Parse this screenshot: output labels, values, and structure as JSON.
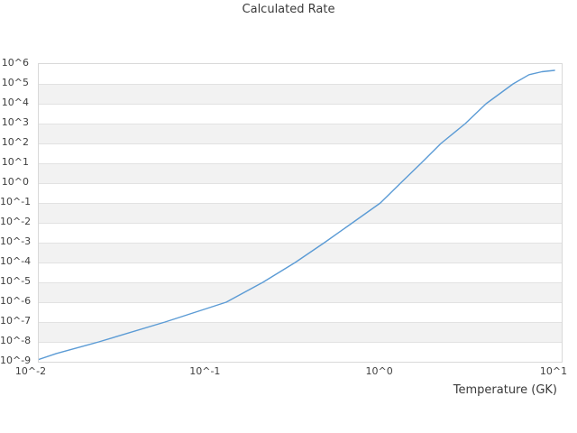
{
  "chart_data": {
    "type": "line",
    "title": "Calculated Rate",
    "xlabel": "Temperature (GK)",
    "ylabel": "",
    "x_scale": "log",
    "y_scale": "log",
    "xlim": [
      0.01,
      10
    ],
    "ylim": [
      1e-09,
      1000000.0
    ],
    "x_ticks": [
      {
        "label": "10^-2",
        "value": 0.01
      },
      {
        "label": "10^-1",
        "value": 0.1
      },
      {
        "label": "10^0",
        "value": 1
      },
      {
        "label": "10^1",
        "value": 10
      }
    ],
    "y_tick_labels": [
      "10^6",
      "10^5",
      "10^4",
      "10^3",
      "10^2",
      "10^1",
      "10^0",
      "10^-1",
      "10^-2",
      "10^-3",
      "10^-4",
      "10^-5",
      "10^-6",
      "10^-7",
      "10^-8",
      "10^-9"
    ],
    "grid": "horizontal decade gridlines with alternating white/gray bands",
    "legend": "none",
    "series": [
      {
        "name": "calculated-rate",
        "color": "#5b9bd5",
        "points": [
          [
            0.01,
            1.3e-09
          ],
          [
            0.0126,
            2.6e-09
          ],
          [
            0.0221,
            1e-08
          ],
          [
            0.053,
            1e-07
          ],
          [
            0.119,
            1e-06
          ],
          [
            0.193,
            1e-05
          ],
          [
            0.296,
            0.0001
          ],
          [
            0.435,
            0.001
          ],
          [
            0.63,
            0.01
          ],
          [
            0.912,
            0.1
          ],
          [
            1.19,
            1.0
          ],
          [
            1.56,
            10.0
          ],
          [
            2.03,
            100.0
          ],
          [
            2.8,
            1000.0
          ],
          [
            3.68,
            10000.0
          ],
          [
            5.26,
            100000.0
          ],
          [
            6.5,
            290000.0
          ],
          [
            7.7,
            410000.0
          ],
          [
            9.1,
            480000.0
          ]
        ]
      }
    ]
  },
  "colors": {
    "background": "#ffffff",
    "band_gray": "#f2f2f2",
    "gridline": "#e2e2e2",
    "plot_border": "#d9d9d9",
    "text": "#3d3d3d",
    "line": "#5b9bd5"
  }
}
